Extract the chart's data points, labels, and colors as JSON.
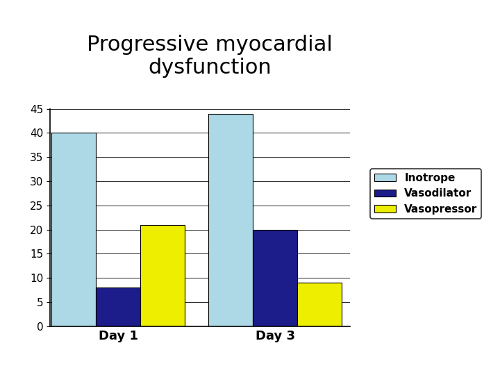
{
  "title": "Progressive myocardial\ndysfunction",
  "categories": [
    "Day 1",
    "Day 3"
  ],
  "series": {
    "Inotrope": [
      40,
      44
    ],
    "Vasodilator": [
      8,
      20
    ],
    "Vasopressor": [
      21,
      9
    ]
  },
  "colors": {
    "Inotrope": "#ADD8E6",
    "Vasodilator": "#1C1C8B",
    "Vasopressor": "#EEEE00"
  },
  "ylim": [
    0,
    45
  ],
  "yticks": [
    0,
    5,
    10,
    15,
    20,
    25,
    30,
    35,
    40,
    45
  ],
  "title_fontsize": 22,
  "legend_fontsize": 11,
  "tick_fontsize": 11,
  "xlabel_fontsize": 13,
  "background_color": "#ffffff",
  "bar_width": 0.13,
  "group_centers": [
    0.22,
    0.68
  ]
}
